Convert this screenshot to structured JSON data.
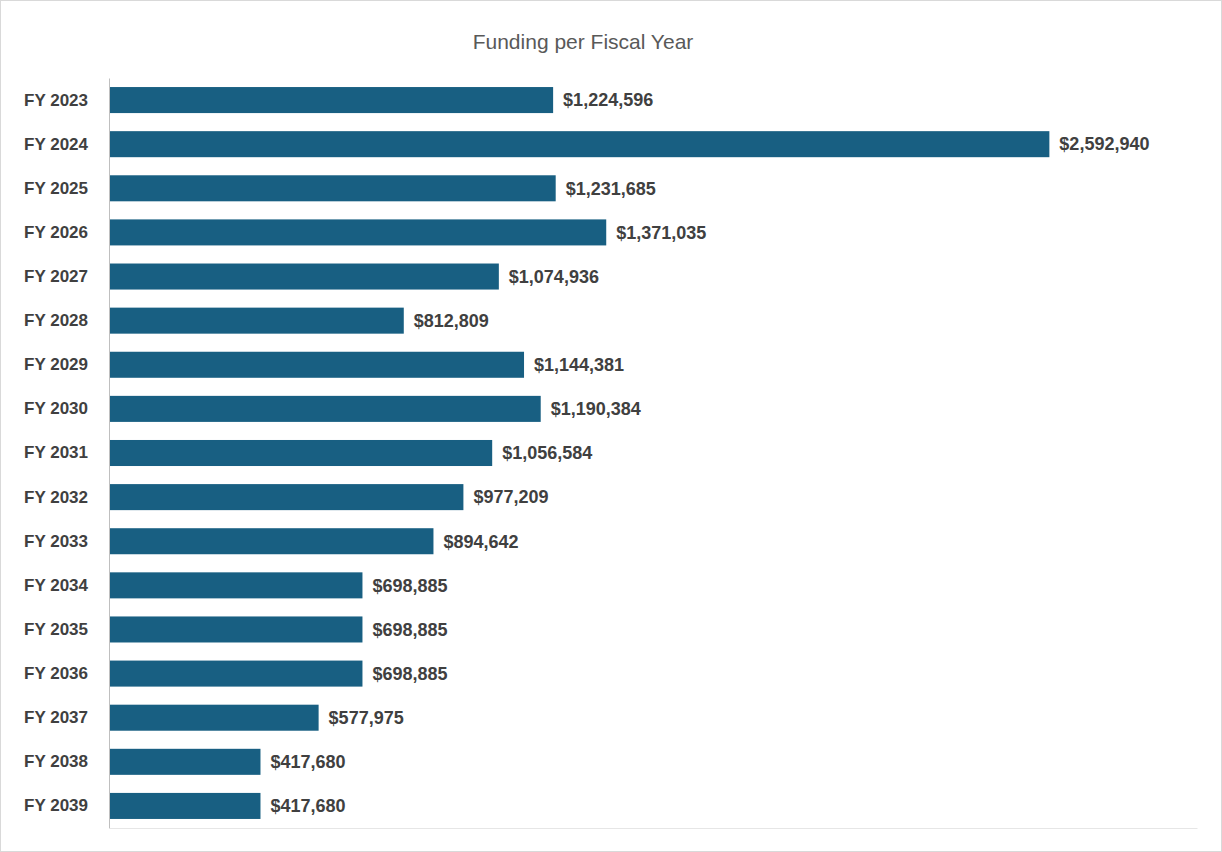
{
  "chart_data": {
    "type": "bar",
    "orientation": "horizontal",
    "title": "Funding per Fiscal Year",
    "categories": [
      "FY 2023",
      "FY 2024",
      "FY 2025",
      "FY 2026",
      "FY 2027",
      "FY 2028",
      "FY 2029",
      "FY 2030",
      "FY 2031",
      "FY 2032",
      "FY 2033",
      "FY 2034",
      "FY 2035",
      "FY 2036",
      "FY 2037",
      "FY 2038",
      "FY 2039"
    ],
    "values": [
      1224596,
      2592940,
      1231685,
      1371035,
      1074936,
      812809,
      1144381,
      1190384,
      1056584,
      977209,
      894642,
      698885,
      698885,
      698885,
      577975,
      417680,
      417680
    ],
    "value_labels": [
      "$1,224,596",
      "$2,592,940",
      "$1,231,685",
      "$1,371,035",
      "$1,074,936",
      "$812,809",
      "$1,144,381",
      "$1,190,384",
      "$1,056,584",
      "$977,209",
      "$894,642",
      "$698,885",
      "$698,885",
      "$698,885",
      "$577,975",
      "$417,680",
      "$417,680"
    ],
    "color": "#185f82",
    "xlim": [
      0,
      3000000
    ],
    "data_labels": true,
    "tick_labels": "y",
    "grid": false
  }
}
